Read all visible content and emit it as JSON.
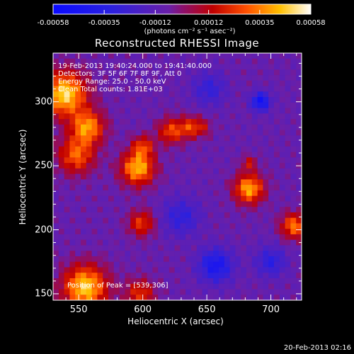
{
  "chart_data": {
    "type": "heatmap",
    "title": "Reconstructed RHESSI Image",
    "xlabel": "Heliocentric X (arcsec)",
    "ylabel": "Heliocentric Y (arcsec)",
    "xlim": [
      530,
      724
    ],
    "ylim": [
      145,
      338
    ],
    "x_ticks": [
      "550",
      "600",
      "650",
      "700"
    ],
    "y_ticks": [
      "300",
      "250",
      "200",
      "150"
    ],
    "colorbar": {
      "range": [
        -0.00058,
        0.00058
      ],
      "ticks": [
        "-0.00058",
        "-0.00035",
        "-0.00012",
        "0.00012",
        "0.00035",
        "0.00058"
      ],
      "unit_label": "(photons cm⁻² s⁻¹ asec⁻²)"
    },
    "annotations": {
      "time_range": "19-Feb-2013 19:40:24.000 to 19:41:40.000",
      "detectors": "Detectors: 3F 5F 6F 7F 8F 9F, Att 0",
      "energy_range": "Energy Range: 25.0 - 50.0 keV",
      "method": "Clean    Total counts: 1.81E+03",
      "peak": "Position of Peak = [539,306]"
    },
    "peak_position": [
      539,
      306
    ],
    "blobs": [
      {
        "x": 539,
        "y": 306,
        "sigma": 12,
        "value": 0.00058
      },
      {
        "x": 557,
        "y": 280,
        "sigma": 9,
        "value": 0.00046
      },
      {
        "x": 548,
        "y": 258,
        "sigma": 10,
        "value": 0.00038
      },
      {
        "x": 596,
        "y": 248,
        "sigma": 9,
        "value": 0.00052
      },
      {
        "x": 600,
        "y": 265,
        "sigma": 6,
        "value": 0.0003
      },
      {
        "x": 622,
        "y": 277,
        "sigma": 7,
        "value": 0.00034
      },
      {
        "x": 637,
        "y": 280,
        "sigma": 6,
        "value": 0.0003
      },
      {
        "x": 599,
        "y": 205,
        "sigma": 7,
        "value": 0.00032
      },
      {
        "x": 683,
        "y": 232,
        "sigma": 8,
        "value": 0.0005
      },
      {
        "x": 683,
        "y": 252,
        "sigma": 4,
        "value": 0.00022
      },
      {
        "x": 718,
        "y": 203,
        "sigma": 7,
        "value": 0.00042
      },
      {
        "x": 555,
        "y": 155,
        "sigma": 12,
        "value": 0.00056
      },
      {
        "x": 598,
        "y": 150,
        "sigma": 8,
        "value": 0.0003
      },
      {
        "x": 647,
        "y": 280,
        "sigma": 5,
        "value": 0.00016
      },
      {
        "x": 692,
        "y": 300,
        "sigma": 5,
        "value": -0.00042
      },
      {
        "x": 657,
        "y": 172,
        "sigma": 9,
        "value": -0.00036
      },
      {
        "x": 630,
        "y": 210,
        "sigma": 10,
        "value": -0.00022
      },
      {
        "x": 652,
        "y": 310,
        "sigma": 9,
        "value": -0.0002
      },
      {
        "x": 700,
        "y": 175,
        "sigma": 8,
        "value": -0.00024
      }
    ]
  },
  "footer": {
    "date": "20-Feb-2013 02:16"
  }
}
